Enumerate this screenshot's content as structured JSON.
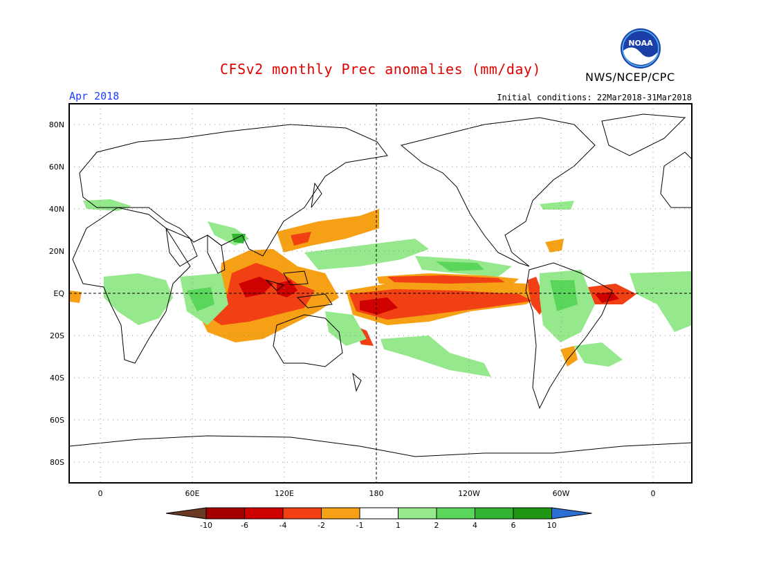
{
  "title": "CFSv2 monthly Prec anomalies (mm/day)",
  "agency": "NWS/NCEP/CPC",
  "logo_text": "NOAA",
  "valid_month": "Apr 2018",
  "initial_conditions": "Initial conditions: 22Mar2018-31Mar2018",
  "lat_labels": [
    "80N",
    "60N",
    "40N",
    "20N",
    "EQ",
    "20S",
    "40S",
    "60S",
    "80S"
  ],
  "lon_labels": [
    "0",
    "60E",
    "120E",
    "180",
    "120W",
    "60W",
    "0"
  ],
  "colorbar": {
    "labels": [
      "-10",
      "-6",
      "-4",
      "-2",
      "-1",
      "1",
      "2",
      "4",
      "6",
      "10"
    ],
    "colors": [
      "#6b3a22",
      "#a40000",
      "#cf0000",
      "#f04014",
      "#f5a015",
      "#ffffff",
      "#96e88c",
      "#5ad75a",
      "#32b432",
      "#1e9614",
      "#2d6ed2"
    ]
  },
  "colors": {
    "title": "#e00000",
    "valid_month": "#1e3cff"
  }
}
